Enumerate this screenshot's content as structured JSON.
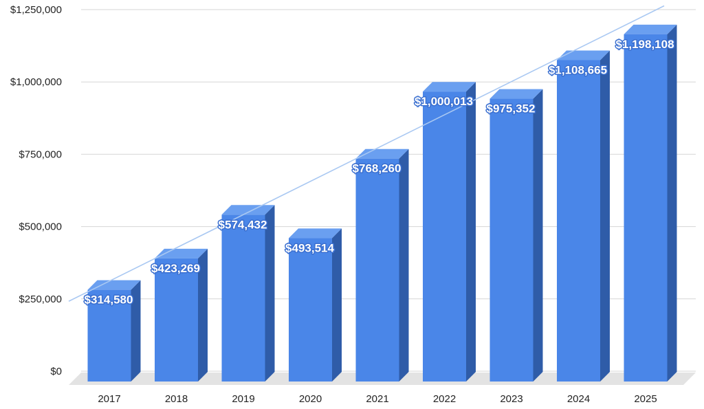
{
  "chart_data": {
    "type": "bar",
    "style": "3d-column",
    "title": "",
    "xlabel": "",
    "ylabel": "",
    "categories": [
      "2017",
      "2018",
      "2019",
      "2020",
      "2021",
      "2022",
      "2023",
      "2024",
      "2025"
    ],
    "series": [
      {
        "values": [
          314580,
          423269,
          574432,
          493514,
          768260,
          1000013,
          975352,
          1108665,
          1198108
        ],
        "data_labels": [
          "$314,580",
          "$423,269",
          "$574,432",
          "$493,514",
          "$768,260",
          "$1,000,013",
          "$975,352",
          "$1,108,665",
          "$1,198,108"
        ],
        "color": "#4a86e8",
        "side_color": "#2f5ca8",
        "top_color": "#6a9ff0"
      }
    ],
    "trendline": {
      "type": "linear",
      "color": "#a9c8f2"
    },
    "ylim": [
      0,
      1250000
    ],
    "yticks": [
      0,
      250000,
      500000,
      750000,
      1000000,
      1250000
    ],
    "ytick_labels": [
      "$0",
      "$250,000",
      "$500,000",
      "$750,000",
      "$1,000,000",
      "$1,250,000"
    ],
    "grid": true,
    "legend": "none",
    "floor_color": "#e3e3e3",
    "gridline_color": "#d6d6d6"
  }
}
